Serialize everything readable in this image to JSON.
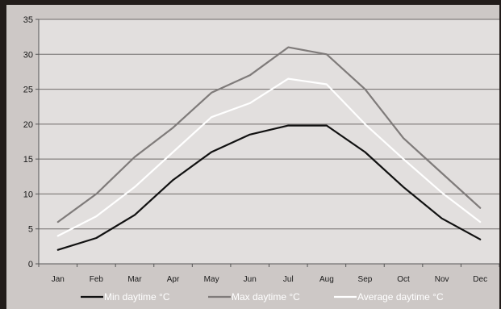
{
  "chart_data": {
    "type": "line",
    "title": "",
    "xlabel": "",
    "ylabel": "",
    "categories": [
      "Jan",
      "Feb",
      "Mar",
      "Apr",
      "May",
      "Jun",
      "Jul",
      "Aug",
      "Sep",
      "Oct",
      "Nov",
      "Dec"
    ],
    "ylim": [
      0,
      35
    ],
    "yticks": [
      0,
      5,
      10,
      15,
      20,
      25,
      30,
      35
    ],
    "grid": true,
    "legend_position": "bottom",
    "series": [
      {
        "name": "Min daytime °C",
        "color": "#111111",
        "values": [
          2,
          3.7,
          7,
          12,
          16,
          18.5,
          19.8,
          19.8,
          16,
          11,
          6.5,
          3.5
        ]
      },
      {
        "name": "Max daytime °C",
        "color": "#7f7b7a",
        "values": [
          6,
          10,
          15.3,
          19.5,
          24.5,
          27,
          31,
          30,
          25,
          18,
          13,
          8
        ]
      },
      {
        "name": "Average daytime °C",
        "color": "#ffffff",
        "values": [
          4,
          6.8,
          11,
          16,
          21,
          23,
          26.5,
          25.7,
          20,
          15,
          10.2,
          6
        ]
      }
    ]
  }
}
